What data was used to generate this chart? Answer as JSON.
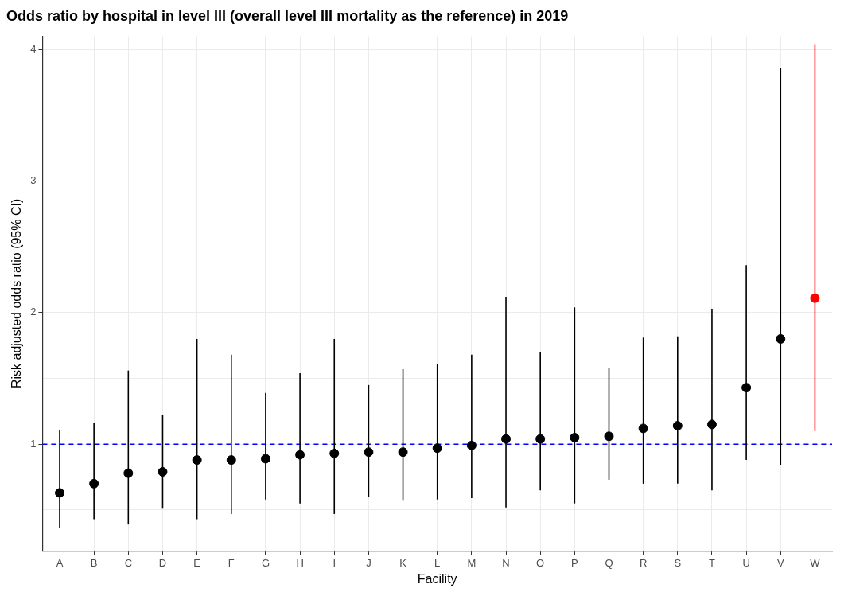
{
  "chart_data": {
    "type": "scatter",
    "title": "Odds ratio by hospital in level III (overall level III mortality as the reference) in 2019",
    "xlabel": "Facility",
    "ylabel": "Risk adjusted odds ratio (95% CI)",
    "categories": [
      "A",
      "B",
      "C",
      "D",
      "E",
      "F",
      "G",
      "H",
      "I",
      "J",
      "K",
      "L",
      "M",
      "N",
      "O",
      "P",
      "Q",
      "R",
      "S",
      "T",
      "U",
      "V",
      "W"
    ],
    "values": [
      0.63,
      0.7,
      0.78,
      0.79,
      0.88,
      0.88,
      0.89,
      0.92,
      0.93,
      0.94,
      0.94,
      0.97,
      0.99,
      1.04,
      1.04,
      1.05,
      1.06,
      1.12,
      1.14,
      1.15,
      1.43,
      1.8,
      2.11
    ],
    "errors": [
      [
        0.36,
        1.11
      ],
      [
        0.43,
        1.16
      ],
      [
        0.39,
        1.56
      ],
      [
        0.51,
        1.22
      ],
      [
        0.43,
        1.8
      ],
      [
        0.47,
        1.68
      ],
      [
        0.58,
        1.39
      ],
      [
        0.55,
        1.54
      ],
      [
        0.47,
        1.8
      ],
      [
        0.6,
        1.45
      ],
      [
        0.57,
        1.57
      ],
      [
        0.58,
        1.61
      ],
      [
        0.59,
        1.68
      ],
      [
        0.52,
        2.12
      ],
      [
        0.65,
        1.7
      ],
      [
        0.55,
        2.04
      ],
      [
        0.73,
        1.58
      ],
      [
        0.7,
        1.81
      ],
      [
        0.7,
        1.82
      ],
      [
        0.65,
        2.03
      ],
      [
        0.88,
        2.36
      ],
      [
        0.84,
        3.86
      ],
      [
        1.1,
        4.04
      ]
    ],
    "colors": [
      "#000000",
      "#000000",
      "#000000",
      "#000000",
      "#000000",
      "#000000",
      "#000000",
      "#000000",
      "#000000",
      "#000000",
      "#000000",
      "#000000",
      "#000000",
      "#000000",
      "#000000",
      "#000000",
      "#000000",
      "#000000",
      "#000000",
      "#000000",
      "#000000",
      "#000000",
      "#ff0000"
    ],
    "ylim": [
      0.19,
      4.1
    ],
    "yticks": [
      {
        "value": 0.5,
        "label": null
      },
      1,
      {
        "value": 1.5,
        "label": null
      },
      2,
      {
        "value": 2.5,
        "label": null
      },
      3,
      {
        "value": 3.5,
        "label": null
      },
      4
    ],
    "ref_lines": [
      {
        "axis": "y",
        "value": 1,
        "color": "#0000ff",
        "line_style": "dashed"
      }
    ],
    "grid": true,
    "legend": false,
    "marker": "circle"
  }
}
